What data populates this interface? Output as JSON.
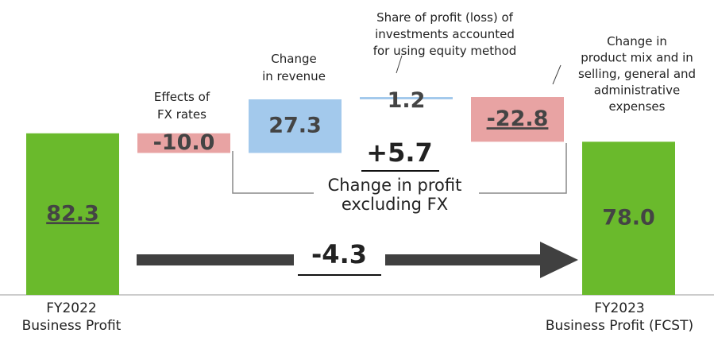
{
  "chart_data": {
    "type": "waterfall",
    "categories": [
      "FY2022\nBusiness Profit",
      "Effects of\nFX rates",
      "Change\nin revenue",
      "Share of profit (loss) of\ninvestments accounted\nfor using equity method",
      "Change in\nproduct mix and in\nselling, general and\nadministrative\nexpenses",
      "FY2023\nBusiness Profit (FCST)"
    ],
    "values": [
      82.3,
      -10.0,
      27.3,
      1.2,
      -22.8,
      78.0
    ],
    "value_labels": [
      "82.3",
      "-10.0",
      "27.3",
      "1.2",
      "-22.8",
      "78.0"
    ],
    "colors": {
      "total": "#6aba2c",
      "increase": "#a3c9ec",
      "decrease": "#e8a3a3"
    },
    "annotations": [
      "+5.7",
      "Change in profit\nexcluding FX",
      "-4.3"
    ]
  }
}
